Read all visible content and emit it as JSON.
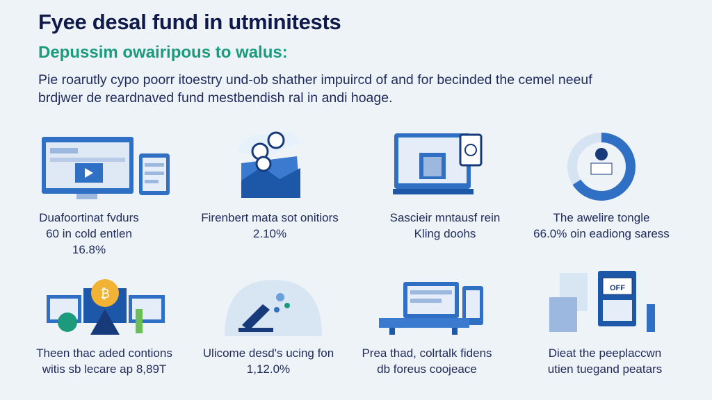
{
  "title": "Fyee desal fund in utminitests",
  "subtitle": "Depussim owairipous to walus:",
  "intro": [
    "Pie roarutly cypo poorr itoestry und-ob shather impuircd of and for becinded the cemel neeuf",
    "brdjwer de reardnaved fund mestbendish ral in andi hoage."
  ],
  "row1": [
    {
      "lines": [
        "Duafoortinat fvdurs",
        "60 in cold entlen",
        "16.8%"
      ],
      "icon": "monitor-tablet-icon"
    },
    {
      "lines": [
        "Firenbert mata sot onitiors",
        "2.10%"
      ],
      "icon": "cloud-mountain-icon"
    },
    {
      "lines": [
        "Sascieir mntausf rein",
        "Kling doohs"
      ],
      "icon": "laptop-safe-icon"
    },
    {
      "lines": [
        "The awelire tongle",
        "66.0% oin eadiong saress"
      ],
      "icon": "donut-chart-icon"
    }
  ],
  "row2": [
    {
      "lines": [
        "Theen thac aded contions",
        "witis sb lecare ap 8,89T"
      ],
      "icon": "bitcoin-screens-icon"
    },
    {
      "lines": [
        "Ulicome desd's ucing fon",
        "1,12.0%"
      ],
      "icon": "scientist-dome-icon"
    },
    {
      "lines": [
        "Prea thad, colrtalk fidens",
        "db foreus coojeace"
      ],
      "icon": "computer-desk-icon"
    },
    {
      "lines": [
        "Dieat the peeplaccwn",
        "utien tuegand peatars"
      ],
      "icon": "office-machine-icon"
    }
  ],
  "colors": {
    "navy": "#0f1a4a",
    "green": "#1b9a7c",
    "blue": "#2f6fc4"
  }
}
